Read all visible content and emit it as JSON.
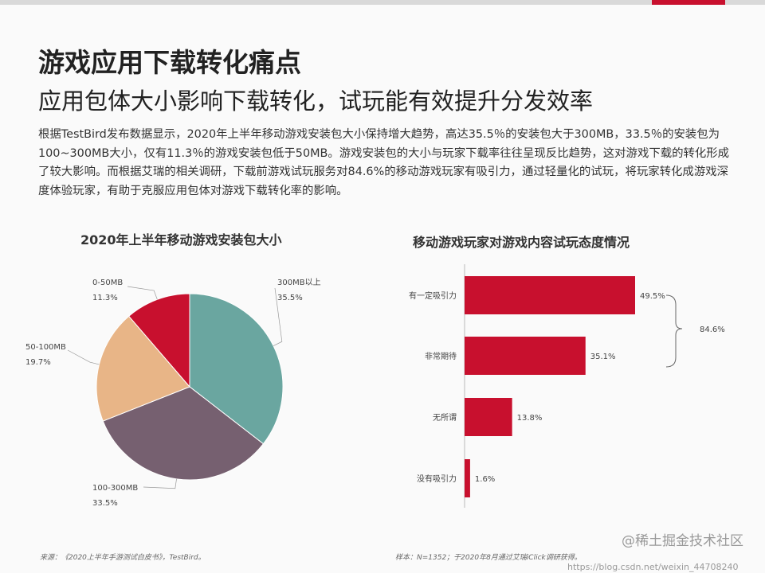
{
  "header": {
    "title": "游戏应用下载转化痛点",
    "subtitle": "应用包体大小影响下载转化，试玩能有效提升分发效率",
    "paragraph": "根据TestBird发布数据显示，2020年上半年移动游戏安装包大小保持增大趋势，高达35.5％的安装包大于300MB，33.5％的安装包为100~300MB大小，仅有11.3％的游戏安装包低于50MB。游戏安装包的大小与玩家下载率往往呈现反比趋势，这对游戏下载的转化形成了较大影响。而根据艾瑞的相关调研，下载前游戏试玩服务对84.6%的移动游戏玩家有吸引力，通过轻量化的试玩，将玩家转化成游戏深度体验玩家，有助于克服应用包体对游戏下载转化率的影响。"
  },
  "chart_data": [
    {
      "type": "pie",
      "title": "2020年上半年移动游戏安装包大小",
      "slices": [
        {
          "label": "300MB以上",
          "value": 35.5,
          "color": "#6aa6a0"
        },
        {
          "label": "100-300MB",
          "value": 33.5,
          "color": "#766070"
        },
        {
          "label": "50-100MB",
          "value": 19.7,
          "color": "#e8b587"
        },
        {
          "label": "0-50MB",
          "value": 11.3,
          "color": "#c8102e"
        }
      ]
    },
    {
      "type": "bar",
      "orientation": "horizontal",
      "title": "移动游戏玩家对游戏内容试玩态度情况",
      "categories": [
        "有一定吸引力",
        "非常期待",
        "无所谓",
        "没有吸引力"
      ],
      "values": [
        49.5,
        35.1,
        13.8,
        1.6
      ],
      "color": "#c8102e",
      "annotation": {
        "label": "84.6%",
        "spans": [
          "有一定吸引力",
          "非常期待"
        ]
      }
    }
  ],
  "footer": {
    "source": "来源：《2020上半年手游测试白皮书》，TestBird。",
    "sample": "样本：N=1352；于2020年8月通过艾瑞iClick调研获得。"
  },
  "watermarks": {
    "juejin": "@稀土掘金技术社区",
    "csdn": "https://blog.csdn.net/weixin_44708240"
  }
}
